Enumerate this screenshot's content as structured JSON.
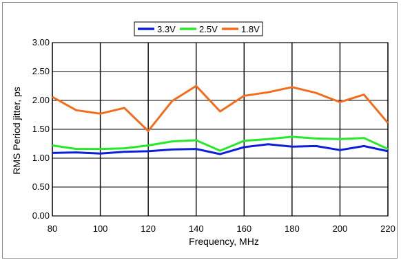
{
  "chart_data": {
    "type": "line",
    "title": "",
    "xlabel": "Frequency, MHz",
    "ylabel": "RMS Period jitter, ps",
    "x": [
      80,
      90,
      100,
      110,
      120,
      130,
      140,
      150,
      160,
      170,
      180,
      190,
      200,
      210,
      220
    ],
    "xlim": [
      80,
      220
    ],
    "ylim": [
      0,
      3
    ],
    "xticks": [
      80,
      100,
      120,
      140,
      160,
      180,
      200,
      220
    ],
    "xtick_labels": [
      "80",
      "100",
      "120",
      "140",
      "160",
      "180",
      "200",
      "220"
    ],
    "yticks": [
      0,
      0.5,
      1,
      1.5,
      2,
      2.5,
      3
    ],
    "ytick_labels": [
      "0.00",
      "0.50",
      "1.00",
      "1.50",
      "2.00",
      "2.50",
      "3.00"
    ],
    "grid": true,
    "legend_position": "top",
    "series": [
      {
        "name": "3.3V",
        "color": "#0b1fd8",
        "values": [
          1.09,
          1.1,
          1.08,
          1.11,
          1.12,
          1.15,
          1.16,
          1.07,
          1.19,
          1.24,
          1.2,
          1.21,
          1.14,
          1.21,
          1.12
        ]
      },
      {
        "name": "2.5V",
        "color": "#28e82c",
        "values": [
          1.22,
          1.16,
          1.16,
          1.17,
          1.22,
          1.29,
          1.31,
          1.13,
          1.3,
          1.33,
          1.37,
          1.34,
          1.33,
          1.35,
          1.16
        ]
      },
      {
        "name": "1.8V",
        "color": "#f26d1b",
        "values": [
          2.06,
          1.83,
          1.77,
          1.87,
          1.47,
          1.99,
          2.25,
          1.81,
          2.08,
          2.14,
          2.23,
          2.13,
          1.97,
          2.1,
          1.61
        ]
      }
    ]
  }
}
